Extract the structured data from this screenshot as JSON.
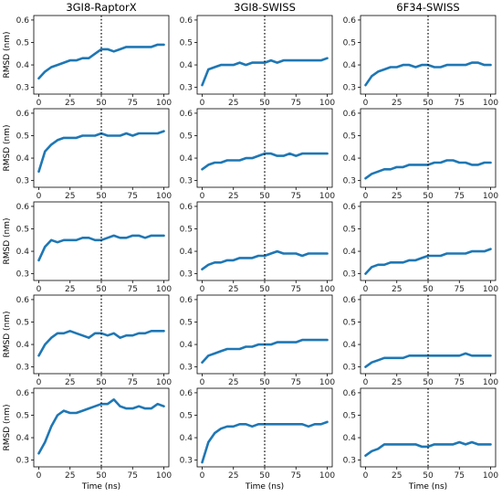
{
  "chart_data": {
    "type": "line",
    "rows": 5,
    "columns": [
      "3GI8-RaptorX",
      "3GI8-SWISS",
      "6F34-SWISS"
    ],
    "ylabel": "RMSD (nm)",
    "xlabel": "Time (ns)",
    "xlim": [
      -4,
      104
    ],
    "ylim": [
      0.27,
      0.62
    ],
    "xticks": [
      0,
      25,
      50,
      75,
      100
    ],
    "yticks": [
      0.3,
      0.4,
      0.5,
      0.6
    ],
    "xtick_labels": [
      "0",
      "25",
      "50",
      "75",
      "100"
    ],
    "ytick_labels": [
      "0.3",
      "0.4",
      "0.5",
      "0.6"
    ],
    "vertical_marker_x": 50,
    "color": "#1f77b4",
    "panels": [
      {
        "row": 0,
        "col": 0,
        "x": [
          0,
          5,
          10,
          15,
          20,
          25,
          30,
          35,
          40,
          45,
          50,
          55,
          60,
          65,
          70,
          75,
          80,
          85,
          90,
          95,
          100
        ],
        "y": [
          0.34,
          0.37,
          0.39,
          0.4,
          0.41,
          0.42,
          0.42,
          0.43,
          0.43,
          0.45,
          0.47,
          0.47,
          0.46,
          0.47,
          0.48,
          0.48,
          0.48,
          0.48,
          0.48,
          0.49,
          0.49
        ]
      },
      {
        "row": 0,
        "col": 1,
        "x": [
          0,
          5,
          10,
          15,
          20,
          25,
          30,
          35,
          40,
          45,
          50,
          55,
          60,
          65,
          70,
          75,
          80,
          85,
          90,
          95,
          100
        ],
        "y": [
          0.31,
          0.38,
          0.39,
          0.4,
          0.4,
          0.4,
          0.41,
          0.4,
          0.41,
          0.41,
          0.41,
          0.42,
          0.41,
          0.42,
          0.42,
          0.42,
          0.42,
          0.42,
          0.42,
          0.42,
          0.43
        ]
      },
      {
        "row": 0,
        "col": 2,
        "x": [
          0,
          5,
          10,
          15,
          20,
          25,
          30,
          35,
          40,
          45,
          50,
          55,
          60,
          65,
          70,
          75,
          80,
          85,
          90,
          95,
          100
        ],
        "y": [
          0.31,
          0.35,
          0.37,
          0.38,
          0.39,
          0.39,
          0.4,
          0.4,
          0.39,
          0.4,
          0.4,
          0.39,
          0.39,
          0.4,
          0.4,
          0.4,
          0.4,
          0.41,
          0.41,
          0.4,
          0.4
        ]
      },
      {
        "row": 1,
        "col": 0,
        "x": [
          0,
          5,
          10,
          15,
          20,
          25,
          30,
          35,
          40,
          45,
          50,
          55,
          60,
          65,
          70,
          75,
          80,
          85,
          90,
          95,
          100
        ],
        "y": [
          0.34,
          0.43,
          0.46,
          0.48,
          0.49,
          0.49,
          0.49,
          0.5,
          0.5,
          0.5,
          0.51,
          0.5,
          0.5,
          0.5,
          0.51,
          0.5,
          0.51,
          0.51,
          0.51,
          0.51,
          0.52
        ]
      },
      {
        "row": 1,
        "col": 1,
        "x": [
          0,
          5,
          10,
          15,
          20,
          25,
          30,
          35,
          40,
          45,
          50,
          55,
          60,
          65,
          70,
          75,
          80,
          85,
          90,
          95,
          100
        ],
        "y": [
          0.35,
          0.37,
          0.38,
          0.38,
          0.39,
          0.39,
          0.39,
          0.4,
          0.4,
          0.41,
          0.42,
          0.42,
          0.41,
          0.41,
          0.42,
          0.41,
          0.42,
          0.42,
          0.42,
          0.42,
          0.42
        ]
      },
      {
        "row": 1,
        "col": 2,
        "x": [
          0,
          5,
          10,
          15,
          20,
          25,
          30,
          35,
          40,
          45,
          50,
          55,
          60,
          65,
          70,
          75,
          80,
          85,
          90,
          95,
          100
        ],
        "y": [
          0.31,
          0.33,
          0.34,
          0.35,
          0.35,
          0.36,
          0.36,
          0.37,
          0.37,
          0.37,
          0.37,
          0.38,
          0.38,
          0.39,
          0.39,
          0.38,
          0.38,
          0.37,
          0.37,
          0.38,
          0.38
        ]
      },
      {
        "row": 2,
        "col": 0,
        "x": [
          0,
          5,
          10,
          15,
          20,
          25,
          30,
          35,
          40,
          45,
          50,
          55,
          60,
          65,
          70,
          75,
          80,
          85,
          90,
          95,
          100
        ],
        "y": [
          0.36,
          0.42,
          0.45,
          0.44,
          0.45,
          0.45,
          0.45,
          0.46,
          0.46,
          0.45,
          0.45,
          0.46,
          0.47,
          0.46,
          0.46,
          0.47,
          0.47,
          0.46,
          0.47,
          0.47,
          0.47
        ]
      },
      {
        "row": 2,
        "col": 1,
        "x": [
          0,
          5,
          10,
          15,
          20,
          25,
          30,
          35,
          40,
          45,
          50,
          55,
          60,
          65,
          70,
          75,
          80,
          85,
          90,
          95,
          100
        ],
        "y": [
          0.32,
          0.34,
          0.35,
          0.35,
          0.36,
          0.36,
          0.37,
          0.37,
          0.37,
          0.38,
          0.38,
          0.39,
          0.4,
          0.39,
          0.39,
          0.39,
          0.38,
          0.39,
          0.39,
          0.39,
          0.39
        ]
      },
      {
        "row": 2,
        "col": 2,
        "x": [
          0,
          5,
          10,
          15,
          20,
          25,
          30,
          35,
          40,
          45,
          50,
          55,
          60,
          65,
          70,
          75,
          80,
          85,
          90,
          95,
          100
        ],
        "y": [
          0.3,
          0.33,
          0.34,
          0.34,
          0.35,
          0.35,
          0.35,
          0.36,
          0.36,
          0.37,
          0.38,
          0.38,
          0.38,
          0.39,
          0.39,
          0.39,
          0.39,
          0.4,
          0.4,
          0.4,
          0.41
        ]
      },
      {
        "row": 3,
        "col": 0,
        "x": [
          0,
          5,
          10,
          15,
          20,
          25,
          30,
          35,
          40,
          45,
          50,
          55,
          60,
          65,
          70,
          75,
          80,
          85,
          90,
          95,
          100
        ],
        "y": [
          0.35,
          0.4,
          0.43,
          0.45,
          0.45,
          0.46,
          0.45,
          0.44,
          0.43,
          0.45,
          0.45,
          0.44,
          0.45,
          0.43,
          0.44,
          0.44,
          0.45,
          0.45,
          0.46,
          0.46,
          0.46
        ]
      },
      {
        "row": 3,
        "col": 1,
        "x": [
          0,
          5,
          10,
          15,
          20,
          25,
          30,
          35,
          40,
          45,
          50,
          55,
          60,
          65,
          70,
          75,
          80,
          85,
          90,
          95,
          100
        ],
        "y": [
          0.32,
          0.35,
          0.36,
          0.37,
          0.38,
          0.38,
          0.38,
          0.39,
          0.39,
          0.4,
          0.4,
          0.4,
          0.41,
          0.41,
          0.41,
          0.41,
          0.42,
          0.42,
          0.42,
          0.42,
          0.42
        ]
      },
      {
        "row": 3,
        "col": 2,
        "x": [
          0,
          5,
          10,
          15,
          20,
          25,
          30,
          35,
          40,
          45,
          50,
          55,
          60,
          65,
          70,
          75,
          80,
          85,
          90,
          95,
          100
        ],
        "y": [
          0.3,
          0.32,
          0.33,
          0.34,
          0.34,
          0.34,
          0.34,
          0.35,
          0.35,
          0.35,
          0.35,
          0.35,
          0.35,
          0.35,
          0.35,
          0.35,
          0.36,
          0.35,
          0.35,
          0.35,
          0.35
        ]
      },
      {
        "row": 4,
        "col": 0,
        "x": [
          0,
          5,
          10,
          15,
          20,
          25,
          30,
          35,
          40,
          45,
          50,
          55,
          60,
          65,
          70,
          75,
          80,
          85,
          90,
          95,
          100
        ],
        "y": [
          0.33,
          0.38,
          0.45,
          0.5,
          0.52,
          0.51,
          0.51,
          0.52,
          0.53,
          0.54,
          0.55,
          0.55,
          0.57,
          0.54,
          0.53,
          0.53,
          0.54,
          0.53,
          0.53,
          0.55,
          0.54
        ]
      },
      {
        "row": 4,
        "col": 1,
        "x": [
          0,
          5,
          10,
          15,
          20,
          25,
          30,
          35,
          40,
          45,
          50,
          55,
          60,
          65,
          70,
          75,
          80,
          85,
          90,
          95,
          100
        ],
        "y": [
          0.29,
          0.38,
          0.42,
          0.44,
          0.45,
          0.45,
          0.46,
          0.46,
          0.45,
          0.46,
          0.46,
          0.46,
          0.46,
          0.46,
          0.46,
          0.46,
          0.46,
          0.45,
          0.46,
          0.46,
          0.47
        ]
      },
      {
        "row": 4,
        "col": 2,
        "x": [
          0,
          5,
          10,
          15,
          20,
          25,
          30,
          35,
          40,
          45,
          50,
          55,
          60,
          65,
          70,
          75,
          80,
          85,
          90,
          95,
          100
        ],
        "y": [
          0.32,
          0.34,
          0.35,
          0.37,
          0.37,
          0.37,
          0.37,
          0.37,
          0.37,
          0.36,
          0.36,
          0.37,
          0.37,
          0.37,
          0.37,
          0.38,
          0.37,
          0.38,
          0.37,
          0.37,
          0.37
        ]
      }
    ]
  }
}
